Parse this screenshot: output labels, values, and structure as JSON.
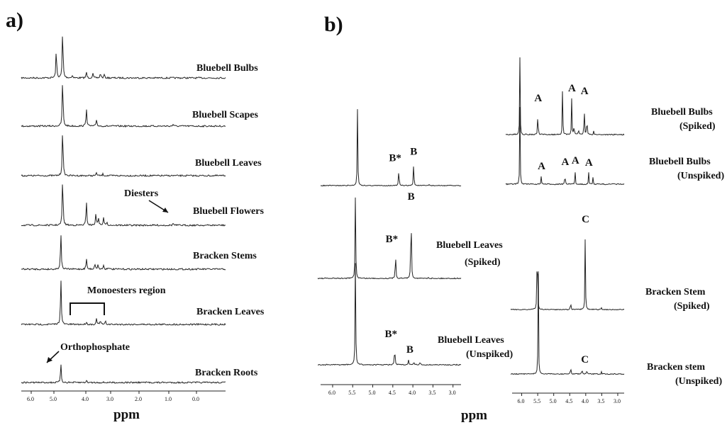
{
  "panel_a": {
    "letter": "a)",
    "xunit": "ppm",
    "annotations": {
      "diesters": "Diesters",
      "monoesters": "Monoesters region",
      "orthophosphate": "Orthophosphate"
    }
  },
  "panel_b": {
    "letter": "b)",
    "xunit": "ppm"
  },
  "chart_data": [
    {
      "type": "line",
      "title": "a)",
      "xlabel": "ppm",
      "xlim": [
        7.0,
        -1.0
      ],
      "xticks": [
        "6.0",
        "5.0",
        "4.0",
        "3.0",
        "2.0",
        "1.0",
        "0.0"
      ],
      "series": [
        {
          "name": "Bluebell Bulbs",
          "peaks": [
            [
              5.63,
              0.85
            ],
            [
              5.38,
              1.5
            ],
            [
              5.0,
              0.08
            ],
            [
              4.45,
              0.18
            ],
            [
              4.2,
              0.14
            ],
            [
              3.9,
              0.15
            ],
            [
              3.75,
              0.1
            ]
          ]
        },
        {
          "name": "Bluebell Scapes",
          "peaks": [
            [
              5.38,
              1.5
            ],
            [
              4.45,
              0.55
            ],
            [
              4.05,
              0.2
            ],
            [
              1.05,
              0.06
            ]
          ]
        },
        {
          "name": "Bluebell Leaves",
          "peaks": [
            [
              5.38,
              1.5
            ],
            [
              4.05,
              0.1
            ],
            [
              3.8,
              0.05
            ]
          ]
        },
        {
          "name": "Bluebell Flowers",
          "peaks": [
            [
              5.38,
              1.5
            ],
            [
              4.45,
              0.7
            ],
            [
              4.08,
              0.35
            ],
            [
              3.98,
              0.25
            ],
            [
              3.78,
              0.22
            ],
            [
              3.65,
              0.12
            ],
            [
              1.05,
              0.07
            ]
          ]
        },
        {
          "name": "Bracken Stems",
          "peaks": [
            [
              5.45,
              1.1
            ],
            [
              4.45,
              0.32
            ],
            [
              4.12,
              0.18
            ],
            [
              4.0,
              0.14
            ],
            [
              3.78,
              0.12
            ],
            [
              3.6,
              0.07
            ]
          ]
        },
        {
          "name": "Bracken Leaves",
          "peaks": [
            [
              5.45,
              1.4
            ],
            [
              4.45,
              0.08
            ],
            [
              4.05,
              0.18
            ],
            [
              3.9,
              0.12
            ],
            [
              3.7,
              0.1
            ]
          ]
        },
        {
          "name": "Bracken  Roots",
          "peaks": [
            [
              5.45,
              0.55
            ],
            [
              4.45,
              0.06
            ]
          ]
        }
      ]
    },
    {
      "type": "line",
      "title": "b)",
      "xlabel": "ppm",
      "xlim": [
        6.3,
        2.8
      ],
      "xticks": [
        "6.0",
        "5.5",
        "5.0",
        "4.5",
        "4.0",
        "3.5",
        "3.0"
      ],
      "series": [
        {
          "name": "",
          "peaks": [
            [
              5.38,
              0.95
            ],
            [
              4.35,
              0.22
            ],
            [
              3.98,
              0.3
            ],
            [
              3.6,
              0.02
            ]
          ],
          "peak_labels": [
            [
              4.35,
              "B*"
            ],
            [
              3.98,
              "B"
            ]
          ]
        },
        {
          "name": "Bluebell Leaves (Spiked)",
          "label_lines": [
            "Bluebell Leaves",
            "(Spiked)"
          ],
          "peaks": [
            [
              5.38,
              1.2
            ],
            [
              4.4,
              0.42
            ],
            [
              4.02,
              1.15
            ],
            [
              3.6,
              0.02
            ]
          ],
          "peak_labels": [
            [
              4.4,
              "B*"
            ],
            [
              4.02,
              "B"
            ]
          ]
        },
        {
          "name": "Bluebell Leaves (Unspiked)",
          "label_lines": [
            "Bluebell Leaves",
            "(Unspiked)"
          ],
          "peaks": [
            [
              5.38,
              1.5
            ],
            [
              4.42,
              0.3
            ],
            [
              4.08,
              0.08
            ],
            [
              3.95,
              0.05
            ],
            [
              3.8,
              0.04
            ]
          ],
          "peak_labels": [
            [
              4.42,
              "B*"
            ],
            [
              4.05,
              "B"
            ]
          ]
        },
        {
          "name": "Bluebell Bulbs (Spiked)",
          "label_lines": [
            "Bluebell Bulbs",
            "(Spiked)"
          ],
          "peaks": [
            [
              5.88,
              1.1
            ],
            [
              5.35,
              0.38
            ],
            [
              4.62,
              0.72
            ],
            [
              4.35,
              0.52
            ],
            [
              4.28,
              0.15
            ],
            [
              4.15,
              0.12
            ],
            [
              3.98,
              0.48
            ],
            [
              3.9,
              0.3
            ],
            [
              3.7,
              0.05
            ]
          ],
          "peak_labels": [
            [
              5.35,
              "A"
            ],
            [
              4.35,
              "A"
            ],
            [
              3.98,
              "A"
            ]
          ]
        },
        {
          "name": "Bluebell Bulbs (Unspiked)",
          "label_lines": [
            "Bluebell Bulbs",
            "(Unspiked)"
          ],
          "peaks": [
            [
              5.88,
              1.1
            ],
            [
              5.25,
              0.12
            ],
            [
              4.55,
              0.18
            ],
            [
              4.25,
              0.2
            ],
            [
              3.85,
              0.17
            ],
            [
              3.72,
              0.1
            ]
          ],
          "peak_labels": [
            [
              5.25,
              "A"
            ],
            [
              4.55,
              "A"
            ],
            [
              4.25,
              "A"
            ],
            [
              3.85,
              "A"
            ]
          ]
        },
        {
          "name": "Bracken Stem (Spiked)",
          "label_lines": [
            "Bracken Stem",
            "(Spiked)"
          ],
          "peaks": [
            [
              5.48,
              1.25
            ],
            [
              4.45,
              0.12
            ],
            [
              4.0,
              0.95
            ],
            [
              3.5,
              0.02
            ]
          ],
          "peak_labels": [
            [
              4.0,
              "C"
            ]
          ]
        },
        {
          "name": "Bracken stem (Unspiked)",
          "label_lines": [
            "Bracken stem",
            "(Unspiked)"
          ],
          "peaks": [
            [
              5.45,
              1.4
            ],
            [
              4.45,
              0.12
            ],
            [
              4.1,
              0.08
            ],
            [
              3.95,
              0.06
            ],
            [
              3.5,
              0.03
            ]
          ],
          "peak_labels": [
            [
              4.02,
              "C"
            ]
          ]
        }
      ]
    }
  ]
}
